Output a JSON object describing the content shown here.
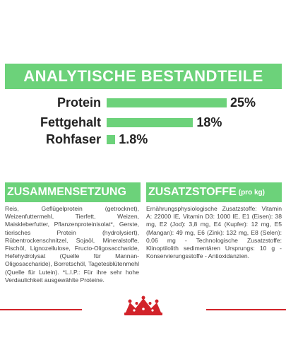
{
  "main_header": {
    "title": "ANALYTISCHE BESTANDTEILE"
  },
  "nutrients": [
    {
      "label": "Protein",
      "value": "25%",
      "percent": 25
    },
    {
      "label": "Fettgehalt",
      "value": "18%",
      "percent": 18
    },
    {
      "label": "Rohfaser",
      "value": "1.8%",
      "percent": 1.8
    }
  ],
  "composition": {
    "title": "ZUSAMMENSETZUNG",
    "text": "Reis, Geflügelprotein (getrocknet), Weizenfuttermehl, Tierfett, Weizen, Maiskleberfutter, Pflanzenproteinisolat*, Gerste, tierisches Protein (hydrolysiert), Rübentrockenschnitzel, Sojaöl, Mineralstoffe, Fischöl, Lignozellulose, Fructo-Oligosaccharide, Hefehydrolysat (Quelle für Mannan-Oligosaccharide), Borretschöl, Tagetesblütenmehl (Quelle für Lutein). *L.I.P.: Für ihre sehr hohe Verdaulichkeit ausgewählte Proteine."
  },
  "additives": {
    "title": "ZUSATZSTOFFE",
    "subtitle": "(pro kg)",
    "text": "Ernährungsphysiologische Zusatzstoffe: Vitamin A: 22000 IE, Vitamin D3: 1000 IE, E1 (Eisen): 38 mg, E2 (Jod): 3,8 mg, E4 (Kupfer): 12 mg, E5 (Mangan): 49 mg, E6 (Zink): 132 mg, E8 (Selen): 0,06 mg - Technologische Zusatzstoffe: Klinoptilolith sedimentären Ursprungs: 10 g - Konservierungsstoffe - Antioxidanzien."
  },
  "colors": {
    "accent": "#6cd27a",
    "brand_red": "#d2232a",
    "text": "#444444"
  },
  "logo": {
    "icon": "royal-crown-logo-icon"
  }
}
